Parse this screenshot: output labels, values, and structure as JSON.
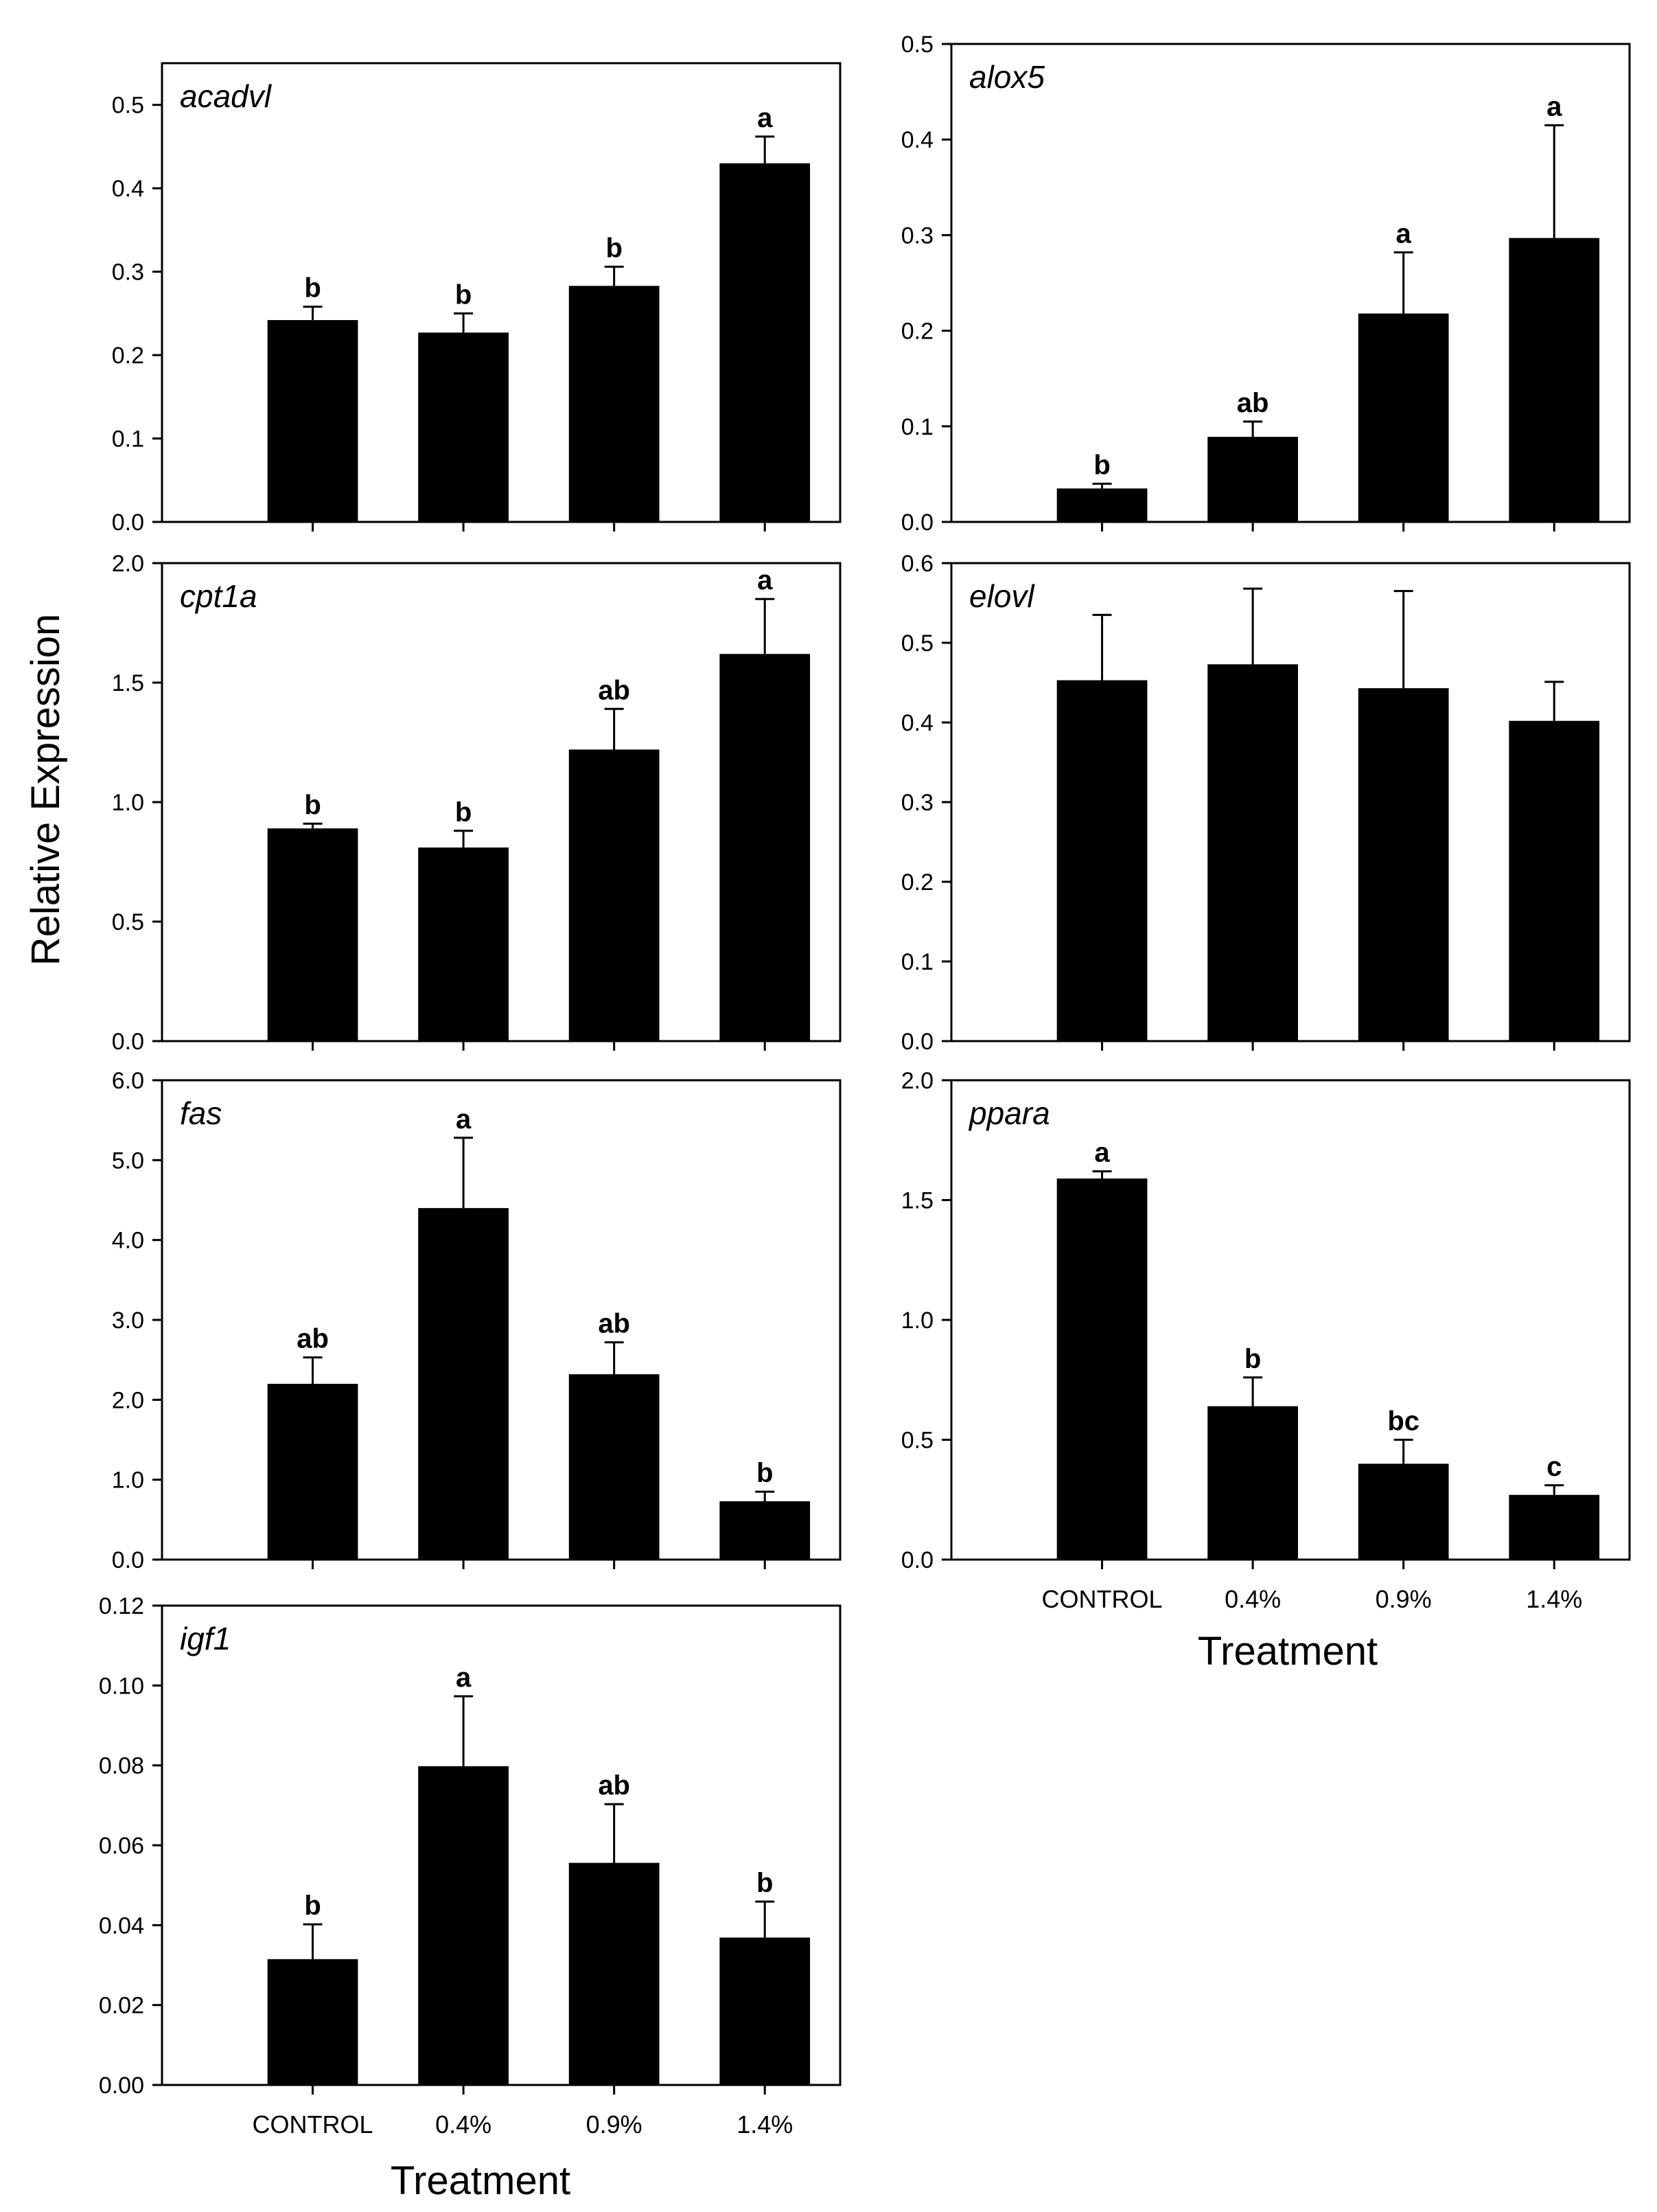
{
  "figure": {
    "ylabel": "Relative Expression",
    "xlabel": "Treatment"
  },
  "chart_data": [
    {
      "type": "bar",
      "title": "acadvl",
      "categories": [
        "CONTROL",
        "0.4%",
        "0.9%",
        "1.4%"
      ],
      "values": [
        0.242,
        0.227,
        0.283,
        0.43
      ],
      "errors": [
        0.016,
        0.023,
        0.023,
        0.032
      ],
      "significance": [
        "b",
        "b",
        "b",
        "a"
      ],
      "ylim": [
        0,
        0.55
      ],
      "yticks": [
        "0.0",
        "0.1",
        "0.2",
        "0.3",
        "0.4",
        "0.5"
      ],
      "xlabel": "",
      "ylabel": "Relative Expression"
    },
    {
      "type": "bar",
      "title": "alox5",
      "categories": [
        "CONTROL",
        "0.4%",
        "0.9%",
        "1.4%"
      ],
      "values": [
        0.035,
        0.089,
        0.218,
        0.297
      ],
      "errors": [
        0.005,
        0.016,
        0.064,
        0.118
      ],
      "significance": [
        "b",
        "ab",
        "a",
        "a"
      ],
      "ylim": [
        0,
        0.5
      ],
      "yticks": [
        "0.0",
        "0.1",
        "0.2",
        "0.3",
        "0.4",
        "0.5"
      ],
      "xlabel": "",
      "ylabel": "Relative Expression"
    },
    {
      "type": "bar",
      "title": "cpt1a",
      "categories": [
        "CONTROL",
        "0.4%",
        "0.9%",
        "1.4%"
      ],
      "values": [
        0.89,
        0.81,
        1.22,
        1.62
      ],
      "errors": [
        0.02,
        0.07,
        0.17,
        0.23
      ],
      "significance": [
        "b",
        "b",
        "ab",
        "a"
      ],
      "ylim": [
        0,
        2.0
      ],
      "yticks": [
        "0.0",
        "0.5",
        "1.0",
        "1.5",
        "2.0"
      ],
      "xlabel": "",
      "ylabel": "Relative Expression"
    },
    {
      "type": "bar",
      "title": "elovl",
      "categories": [
        "CONTROL",
        "0.4%",
        "0.9%",
        "1.4%"
      ],
      "values": [
        0.453,
        0.473,
        0.443,
        0.402
      ],
      "errors": [
        0.082,
        0.095,
        0.122,
        0.049
      ],
      "significance": [
        "",
        "",
        "",
        ""
      ],
      "ylim": [
        0,
        0.6
      ],
      "yticks": [
        "0.0",
        "0.1",
        "0.2",
        "0.3",
        "0.4",
        "0.5",
        "0.6"
      ],
      "xlabel": "",
      "ylabel": "Relative Expression"
    },
    {
      "type": "bar",
      "title": "fas",
      "categories": [
        "CONTROL",
        "0.4%",
        "0.9%",
        "1.4%"
      ],
      "values": [
        2.2,
        4.4,
        2.32,
        0.73
      ],
      "errors": [
        0.33,
        0.88,
        0.4,
        0.12
      ],
      "significance": [
        "ab",
        "a",
        "ab",
        "b"
      ],
      "ylim": [
        0,
        6.0
      ],
      "yticks": [
        "0.0",
        "1.0",
        "2.0",
        "3.0",
        "4.0",
        "5.0",
        "6.0"
      ],
      "xlabel": "",
      "ylabel": "Relative Expression"
    },
    {
      "type": "bar",
      "title": "ppara",
      "categories": [
        "CONTROL",
        "0.4%",
        "0.9%",
        "1.4%"
      ],
      "values": [
        1.59,
        0.64,
        0.4,
        0.27
      ],
      "errors": [
        0.03,
        0.12,
        0.1,
        0.04
      ],
      "significance": [
        "a",
        "b",
        "bc",
        "c"
      ],
      "ylim": [
        0,
        2.0
      ],
      "yticks": [
        "0.0",
        "0.5",
        "1.0",
        "1.5",
        "2.0"
      ],
      "xlabel": "Treatment",
      "ylabel": "Relative Expression"
    },
    {
      "type": "bar",
      "title": "igf1",
      "categories": [
        "CONTROL",
        "0.4%",
        "0.9%",
        "1.4%"
      ],
      "values": [
        0.0315,
        0.0798,
        0.0556,
        0.0369
      ],
      "errors": [
        0.0087,
        0.0175,
        0.0147,
        0.009
      ],
      "significance": [
        "b",
        "a",
        "ab",
        "b"
      ],
      "ylim": [
        0,
        0.12
      ],
      "yticks": [
        "0.00",
        "0.02",
        "0.04",
        "0.06",
        "0.08",
        "0.10",
        "0.12"
      ],
      "xlabel": "Treatment",
      "ylabel": "Relative Expression"
    }
  ]
}
